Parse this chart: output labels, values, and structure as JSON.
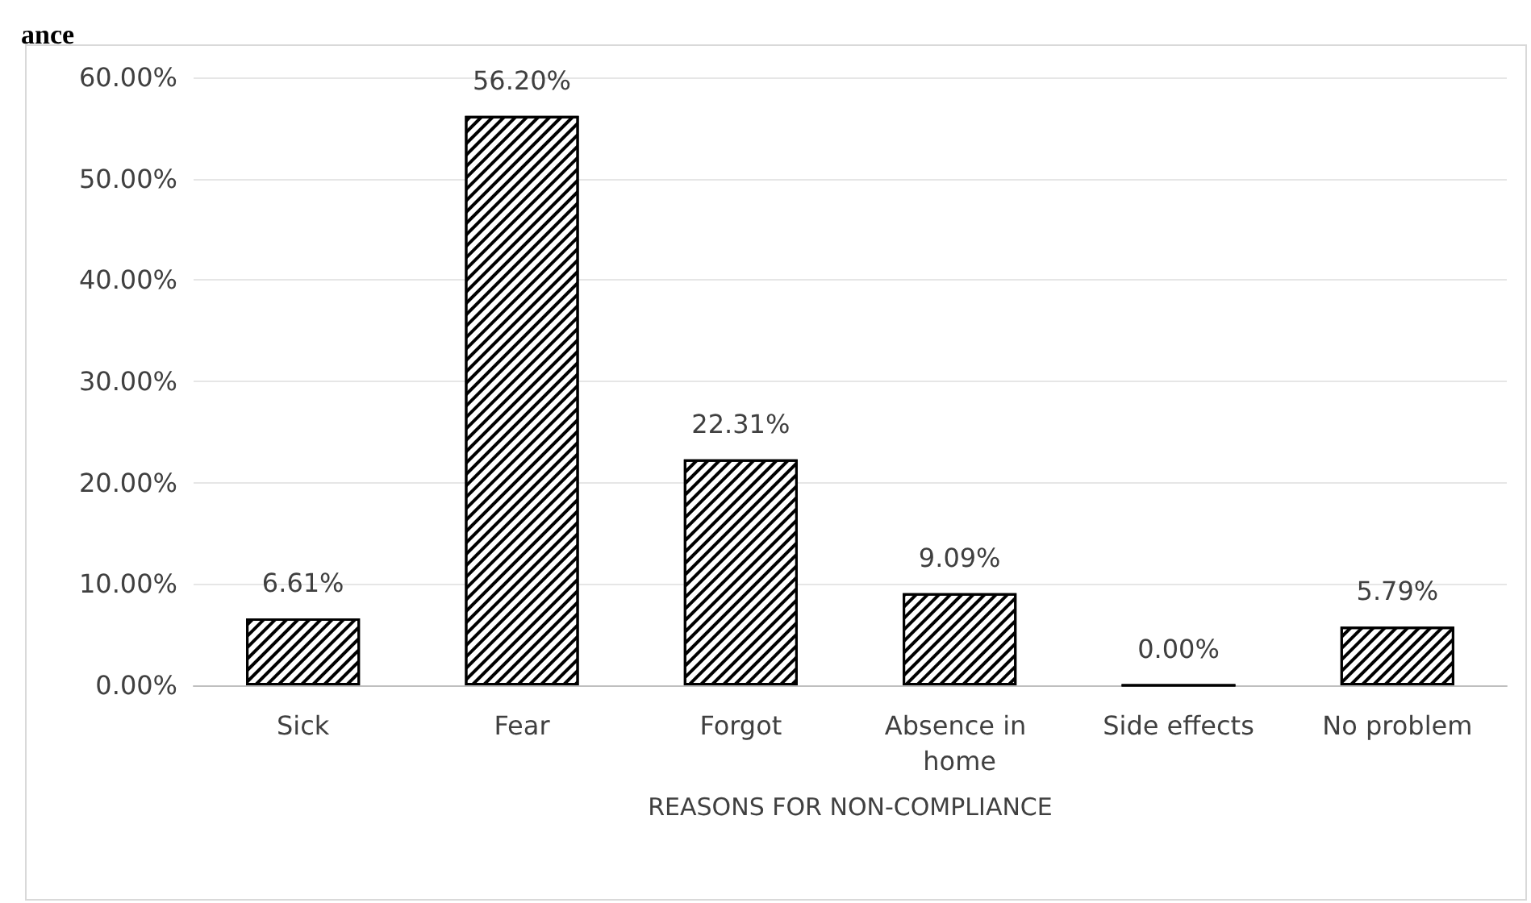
{
  "chart_data": {
    "type": "bar",
    "title": "ance",
    "xlabel": "REASONS FOR NON-COMPLIANCE",
    "categories": [
      "Sick",
      "Fear",
      "Forgot",
      "Absence in home",
      "Side effects",
      "No problem"
    ],
    "series": [
      {
        "color": "#000000",
        "values": [
          6.61,
          56.2,
          22.31,
          9.09,
          0,
          5.79
        ],
        "value_labels": [
          "6.61%",
          "56.20%",
          "22.31%",
          "9.09%",
          "0.00%",
          "5.79%"
        ]
      }
    ],
    "ylim": [
      0,
      60
    ],
    "yticks": [
      {
        "value": 0,
        "label": "0.00%"
      },
      {
        "value": 10,
        "label": "10.00%"
      },
      {
        "value": 20,
        "label": "20.00%"
      },
      {
        "value": 30,
        "label": "30.00%"
      },
      {
        "value": 40,
        "label": "40.00%"
      },
      {
        "value": 50,
        "label": "50.00%"
      },
      {
        "value": 60,
        "label": "60.00%"
      }
    ],
    "grid": "y"
  }
}
